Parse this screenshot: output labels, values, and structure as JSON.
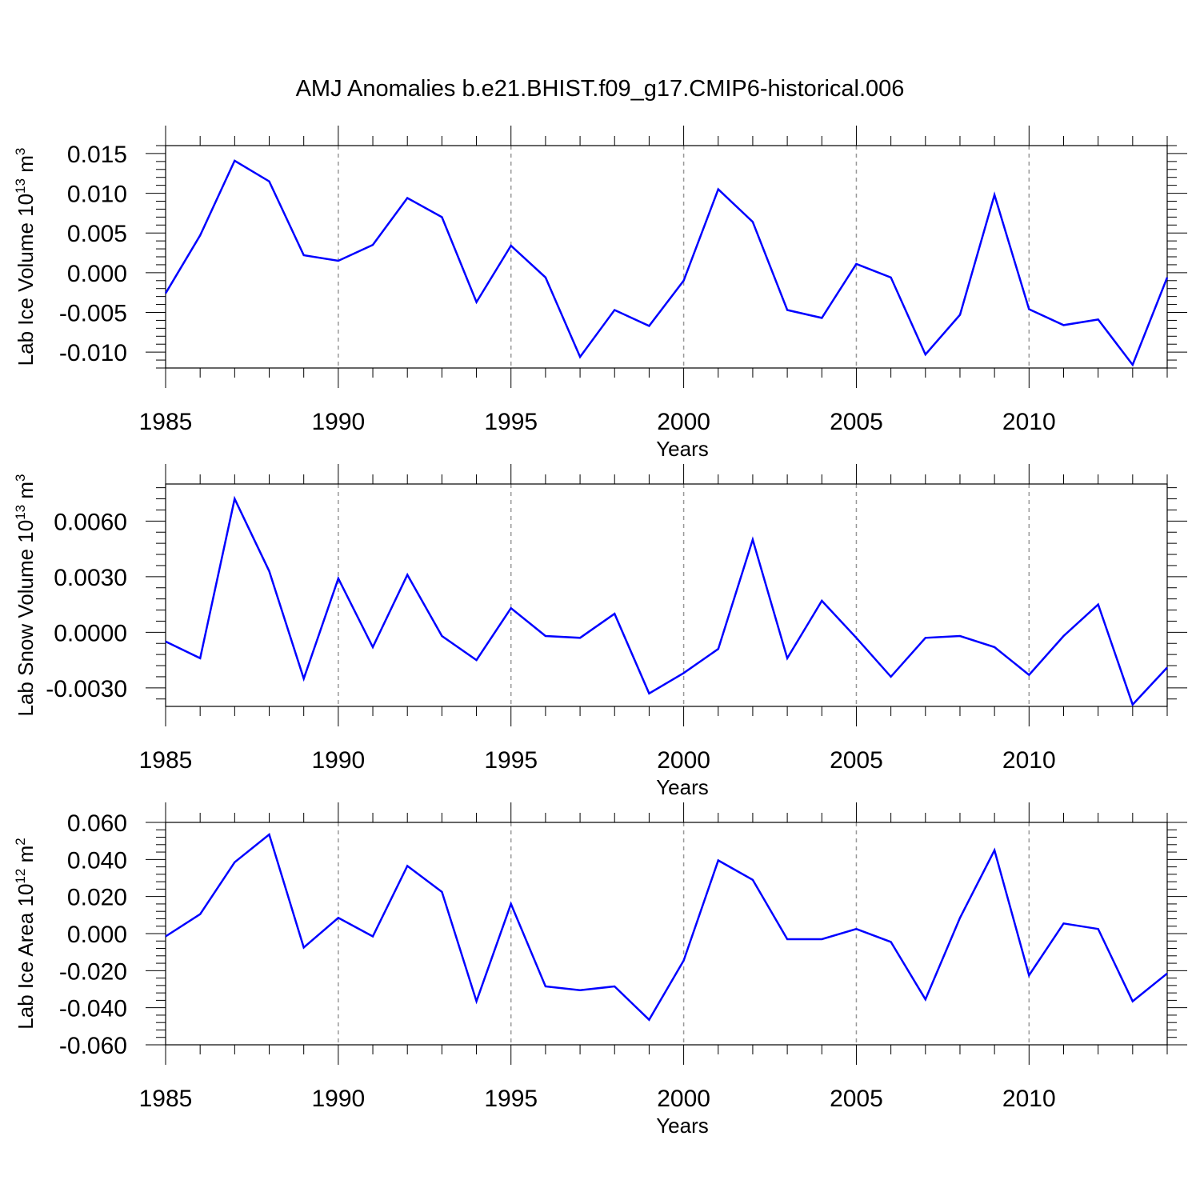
{
  "title": "AMJ Anomalies b.e21.BHIST.f09_g17.CMIP6-historical.006",
  "colors": {
    "line": "#0000ff",
    "frame": "#000000",
    "grid": "#999999"
  },
  "chart_data": [
    {
      "type": "line",
      "panel": "ice-volume",
      "ylabel": "Lab Ice Volume 10",
      "ylabel_exp": "13",
      "ylabel_unit": " m",
      "ylabel_unit_exp": "3",
      "xlabel": "Years",
      "xlim": [
        1985,
        2014
      ],
      "ylim": [
        -0.012,
        0.016
      ],
      "x_ticks": [
        1985,
        1990,
        1995,
        2000,
        2005,
        2010
      ],
      "x_tick_labels": [
        "1985",
        "1990",
        "1995",
        "2000",
        "2005",
        "2010"
      ],
      "y_ticks": [
        -0.01,
        -0.005,
        0.0,
        0.005,
        0.01,
        0.015
      ],
      "y_tick_labels": [
        "-0.010",
        "-0.005",
        "0.000",
        "0.005",
        "0.010",
        "0.015"
      ],
      "x": [
        1985,
        1986,
        1987,
        1988,
        1989,
        1990,
        1991,
        1992,
        1993,
        1994,
        1995,
        1996,
        1997,
        1998,
        1999,
        2000,
        2001,
        2002,
        2003,
        2004,
        2005,
        2006,
        2007,
        2008,
        2009,
        2010,
        2011,
        2012,
        2013,
        2014
      ],
      "values": [
        -0.0026,
        0.0047,
        0.0141,
        0.0115,
        0.0022,
        0.0015,
        0.0035,
        0.0094,
        0.007,
        -0.0037,
        0.0034,
        -0.0006,
        -0.0106,
        -0.0047,
        -0.0067,
        -0.001,
        0.0105,
        0.0064,
        -0.0047,
        -0.0057,
        0.0011,
        -0.0006,
        -0.0103,
        -0.0053,
        0.0098,
        -0.0046,
        -0.0066,
        -0.0059,
        -0.0116,
        -0.0006
      ]
    },
    {
      "type": "line",
      "panel": "snow-volume",
      "ylabel": "Lab Snow Volume 10",
      "ylabel_exp": "13",
      "ylabel_unit": " m",
      "ylabel_unit_exp": "3",
      "xlabel": "Years",
      "xlim": [
        1985,
        2014
      ],
      "ylim": [
        -0.004,
        0.008
      ],
      "x_ticks": [
        1985,
        1990,
        1995,
        2000,
        2005,
        2010
      ],
      "x_tick_labels": [
        "1985",
        "1990",
        "1995",
        "2000",
        "2005",
        "2010"
      ],
      "y_ticks": [
        -0.003,
        0.0,
        0.003,
        0.006
      ],
      "y_tick_labels": [
        "-0.0030",
        "0.0000",
        "0.0030",
        "0.0060"
      ],
      "x": [
        1985,
        1986,
        1987,
        1988,
        1989,
        1990,
        1991,
        1992,
        1993,
        1994,
        1995,
        1996,
        1997,
        1998,
        1999,
        2000,
        2001,
        2002,
        2003,
        2004,
        2005,
        2006,
        2007,
        2008,
        2009,
        2010,
        2011,
        2012,
        2013,
        2014
      ],
      "values": [
        -0.0005,
        -0.0014,
        0.0072,
        0.0033,
        -0.0025,
        0.0029,
        -0.0008,
        0.0031,
        -0.0002,
        -0.0015,
        0.0013,
        -0.0002,
        -0.0003,
        0.001,
        -0.0033,
        -0.0022,
        -0.0009,
        0.005,
        -0.0014,
        0.0017,
        -0.0003,
        -0.0024,
        -0.0003,
        -0.0002,
        -0.0008,
        -0.0023,
        -0.0002,
        0.0015,
        -0.0039,
        -0.0019
      ]
    },
    {
      "type": "line",
      "panel": "ice-area",
      "ylabel": "Lab Ice Area 10",
      "ylabel_exp": "12",
      "ylabel_unit": " m",
      "ylabel_unit_exp": "2",
      "xlabel": "Years",
      "xlim": [
        1985,
        2014
      ],
      "ylim": [
        -0.06,
        0.06
      ],
      "x_ticks": [
        1985,
        1990,
        1995,
        2000,
        2005,
        2010
      ],
      "x_tick_labels": [
        "1985",
        "1990",
        "1995",
        "2000",
        "2005",
        "2010"
      ],
      "y_ticks": [
        -0.06,
        -0.04,
        -0.02,
        0.0,
        0.02,
        0.04,
        0.06
      ],
      "y_tick_labels": [
        "-0.060",
        "-0.040",
        "-0.020",
        "0.000",
        "0.020",
        "0.040",
        "0.060"
      ],
      "x": [
        1985,
        1986,
        1987,
        1988,
        1989,
        1990,
        1991,
        1992,
        1993,
        1994,
        1995,
        1996,
        1997,
        1998,
        1999,
        2000,
        2001,
        2002,
        2003,
        2004,
        2005,
        2006,
        2007,
        2008,
        2009,
        2010,
        2011,
        2012,
        2013,
        2014
      ],
      "values": [
        -0.0015,
        0.0105,
        0.0385,
        0.0535,
        -0.0075,
        0.0085,
        -0.0015,
        0.0365,
        0.0225,
        -0.0365,
        0.016,
        -0.0285,
        -0.0305,
        -0.0285,
        -0.0465,
        -0.0145,
        0.0395,
        0.029,
        -0.003,
        -0.003,
        0.0025,
        -0.0045,
        -0.0355,
        0.0085,
        0.045,
        -0.0225,
        0.0055,
        0.0025,
        -0.0365,
        -0.0215
      ]
    }
  ]
}
